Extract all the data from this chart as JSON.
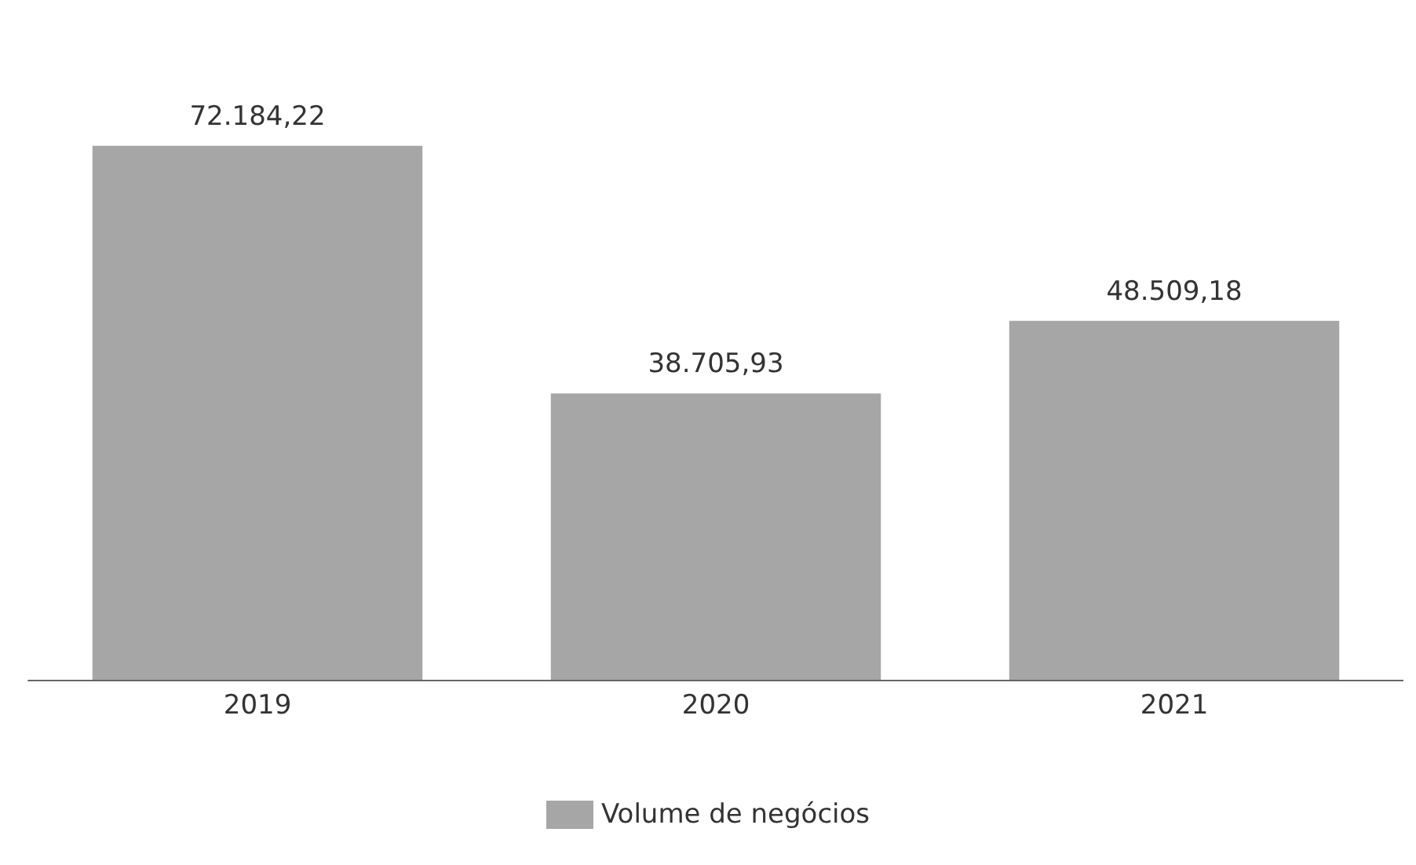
{
  "chart_data": {
    "type": "bar",
    "categories": [
      "2019",
      "2020",
      "2021"
    ],
    "series": [
      {
        "name": "Volume de negócios",
        "color": "#a6a6a6",
        "values": [
          72184.22,
          38705.93,
          48509.18
        ],
        "value_labels": [
          "72.184,22",
          "38.705,93",
          "48.509,18"
        ]
      }
    ],
    "legend": "bottom"
  }
}
